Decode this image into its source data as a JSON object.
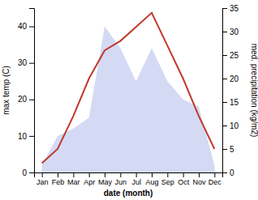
{
  "chart_data": {
    "type": "line",
    "xlabel": "date (month)",
    "ylabel": "max temp (C)",
    "y2label": "med. precipitation (kg/m2)",
    "categories": [
      "Jan",
      "Feb",
      "Mar",
      "Apr",
      "May",
      "Jun",
      "Jul",
      "Aug",
      "Sep",
      "Oct",
      "Nov",
      "Dec"
    ],
    "series": [
      {
        "type": "area",
        "color": "#c5cdf0",
        "values": [
          2,
          10,
          12,
          15,
          40,
          34,
          25,
          34,
          25,
          20,
          18,
          2
        ]
      },
      {
        "type": "line",
        "color": "#c0392b",
        "axis": "y2",
        "values": [
          2,
          5,
          12,
          20,
          26,
          28,
          31,
          34,
          27,
          20,
          12,
          5
        ]
      }
    ],
    "ylim": [
      0,
      45
    ],
    "yticks": [
      0,
      10,
      20,
      30,
      40
    ],
    "y2lim": [
      0,
      35
    ],
    "y2ticks": [
      0,
      5,
      10,
      15,
      20,
      25,
      30,
      35
    ],
    "grid": false
  }
}
